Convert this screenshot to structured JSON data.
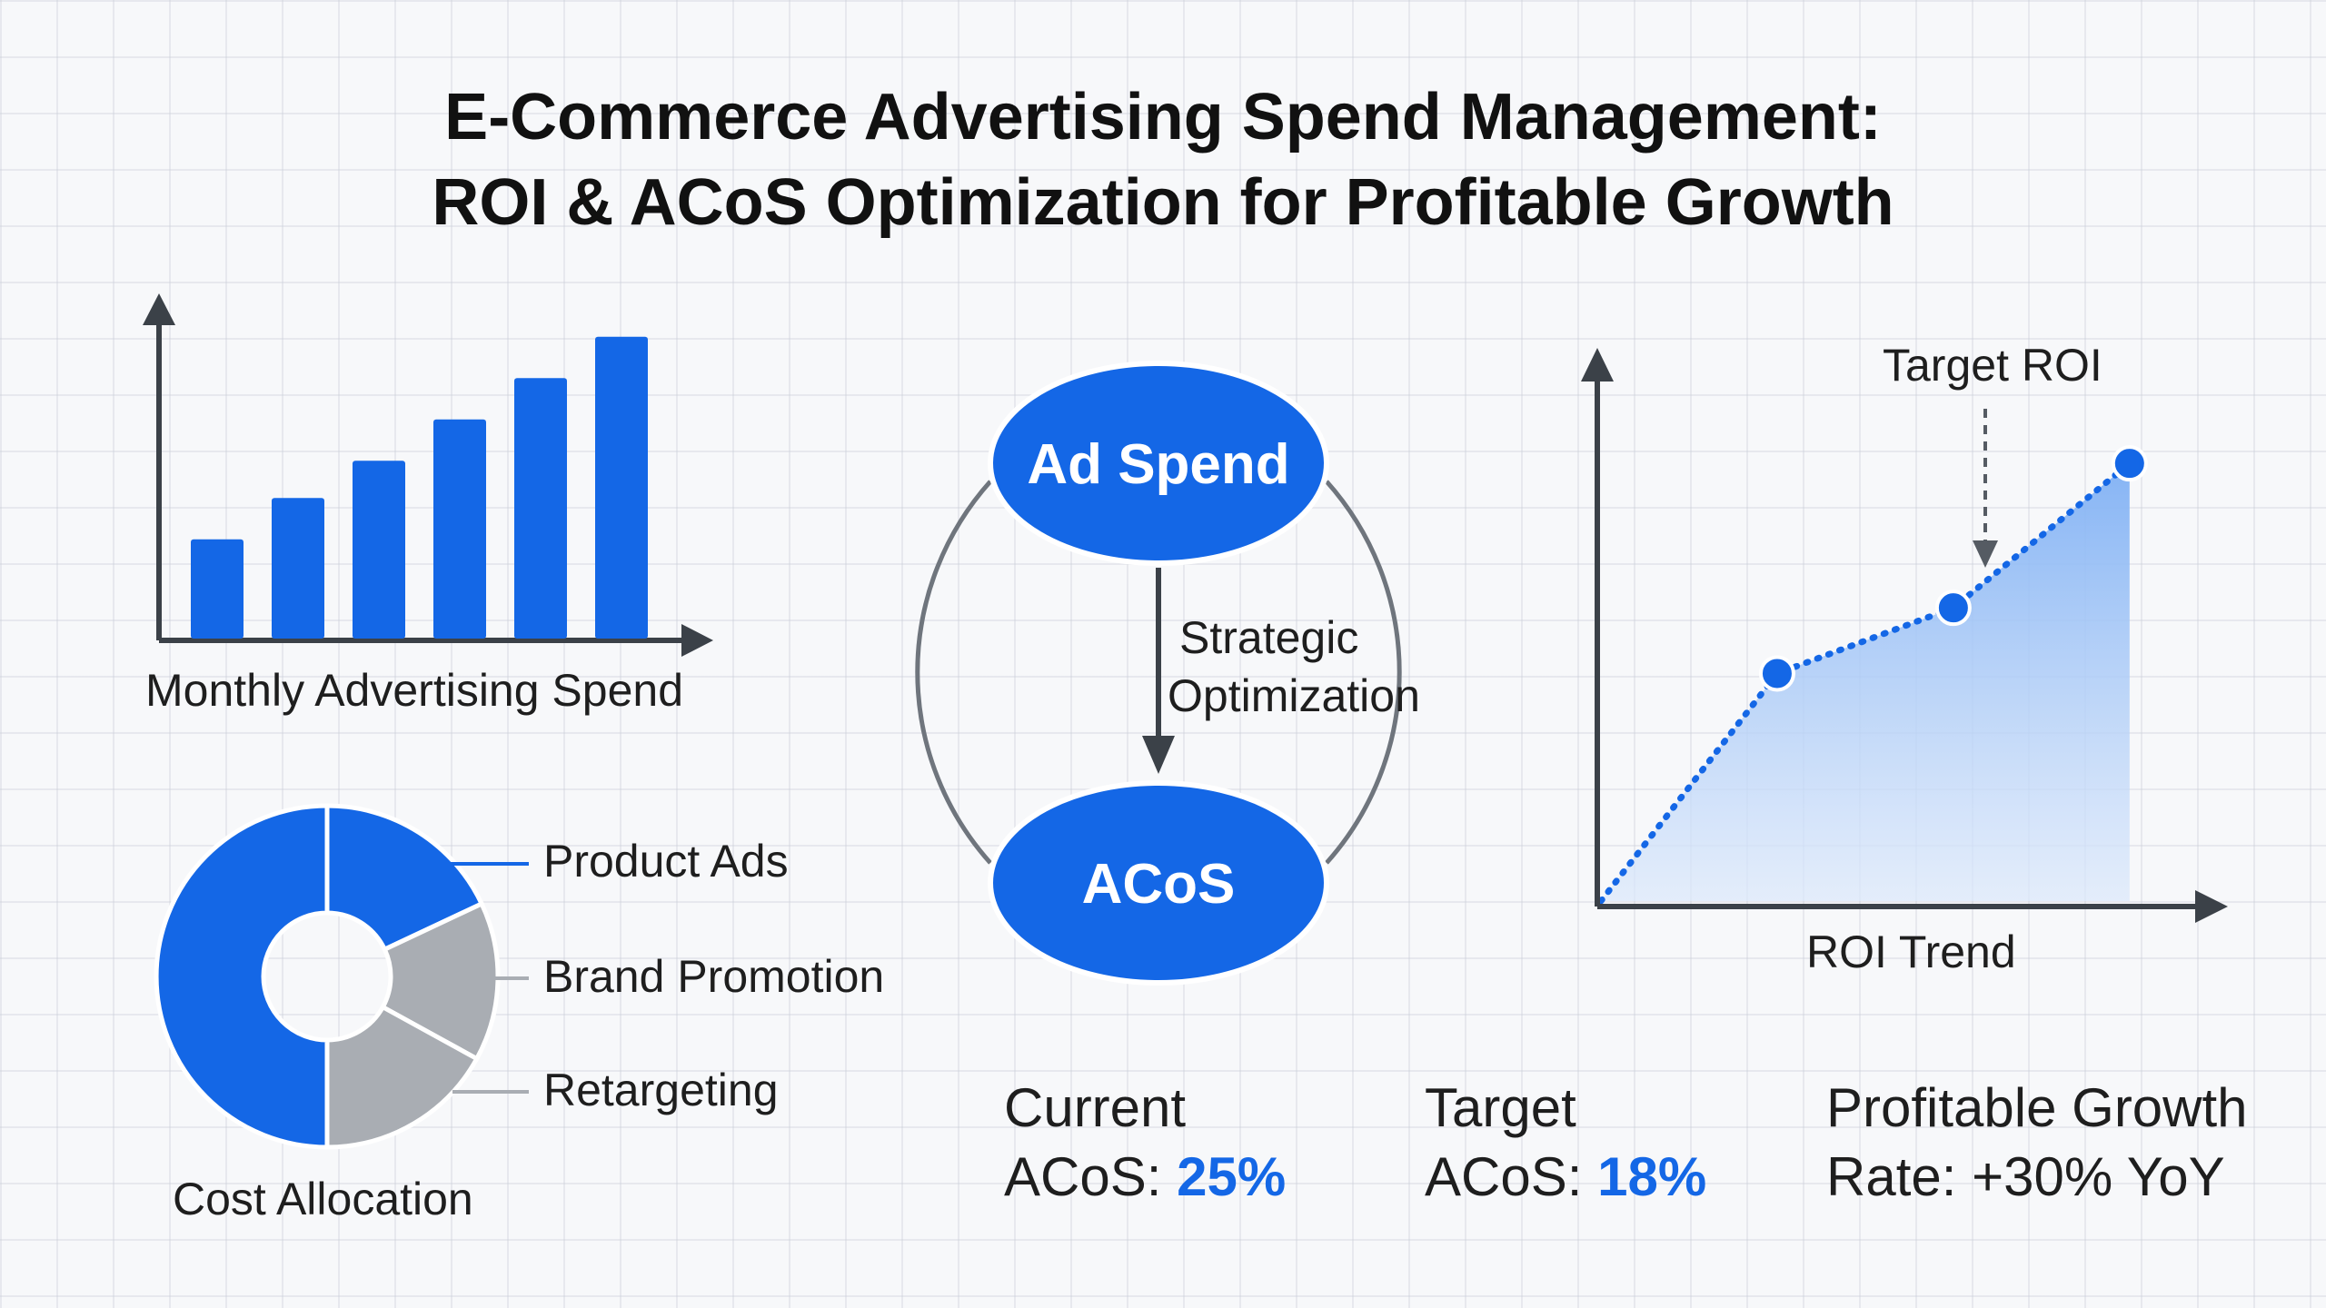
{
  "title": {
    "line1": "E-Commerce Advertising Spend Management:",
    "line2": "ROI & ACoS Optimization for Profitable Growth"
  },
  "colors": {
    "accent": "#1467e6",
    "grey": "#a9adb3",
    "text": "#1e1e1e"
  },
  "bar_chart": {
    "label": "Monthly Advertising Spend",
    "chart_data": {
      "type": "bar",
      "categories": [
        "",
        "",
        "",
        "",
        "",
        ""
      ],
      "values": [
        24,
        34,
        43,
        53,
        63,
        73
      ],
      "ylim": [
        0,
        78
      ],
      "title": "",
      "xlabel": "",
      "ylabel": ""
    }
  },
  "donut_chart": {
    "label": "Cost Allocation",
    "chart_data": {
      "type": "pie",
      "categories": [
        "Product Ads",
        "Brand Promotion",
        "Retargeting",
        ""
      ],
      "values": [
        18,
        15,
        17,
        50
      ],
      "colors": [
        "#1467e6",
        "#a9adb3",
        "#a9adb3",
        "#1467e6"
      ]
    },
    "legend": [
      "Product Ads",
      "Brand Promotion",
      "Retargeting"
    ]
  },
  "cycle": {
    "top_node": "Ad Spend",
    "bottom_node": "ACoS",
    "arrow_label_line1": "Strategic",
    "arrow_label_line2": "Optimization"
  },
  "roi_chart": {
    "label": "ROI Trend",
    "annotation": "Target ROI",
    "chart_data": {
      "type": "area",
      "x": [
        0,
        1,
        2,
        3
      ],
      "y": [
        0,
        52,
        67,
        100
      ],
      "ylim": [
        0,
        110
      ],
      "xlim": [
        0,
        3.3
      ],
      "title": "",
      "xlabel": "",
      "ylabel": ""
    }
  },
  "stats": [
    {
      "line1": "Current",
      "prefix": "ACoS: ",
      "value": "25%"
    },
    {
      "line1": "Target",
      "prefix": "ACoS: ",
      "value": "18%"
    },
    {
      "line1": "Profitable Growth",
      "line2": "Rate: +30% YoY"
    }
  ]
}
